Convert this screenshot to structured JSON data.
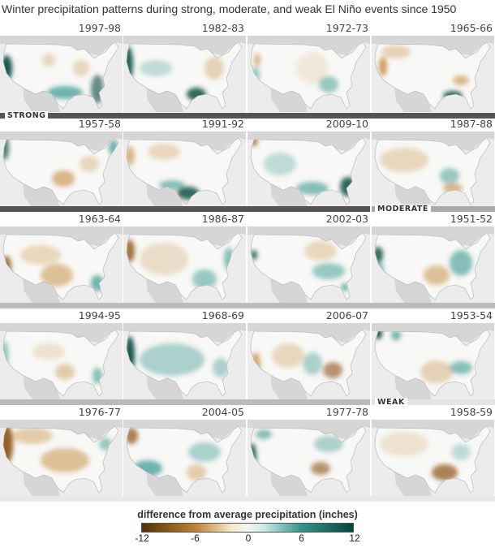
{
  "title": "Winter precipitation patterns during strong, moderate, and weak El Niño events since 1950",
  "rows": [
    [
      "1997-98",
      "1982-83",
      "1972-73",
      "1965-66"
    ],
    [
      "1957-58",
      "1991-92",
      "2009-10",
      "1987-88"
    ],
    [
      "1963-64",
      "1986-87",
      "2002-03",
      "1951-52"
    ],
    [
      "1994-95",
      "1968-69",
      "2006-07",
      "1953-54"
    ],
    [
      "1976-77",
      "2004-05",
      "1977-78",
      "1958-59"
    ]
  ],
  "categories": {
    "strong": "STRONG",
    "moderate": "MODERATE",
    "weak": "WEAK"
  },
  "legend": {
    "title": "difference from average precipitation (inches)",
    "ticks": [
      "-12",
      "-6",
      "0",
      "6",
      "12"
    ],
    "range": [
      -12,
      12
    ],
    "colors": {
      "min": "#543005",
      "dry": "#bf812d",
      "zero": "#f5f5f5",
      "wet": "#35978f",
      "max": "#01463a"
    }
  },
  "colors": {
    "strong_bar": "#555555",
    "other_bar": "#bbbbbb"
  }
}
